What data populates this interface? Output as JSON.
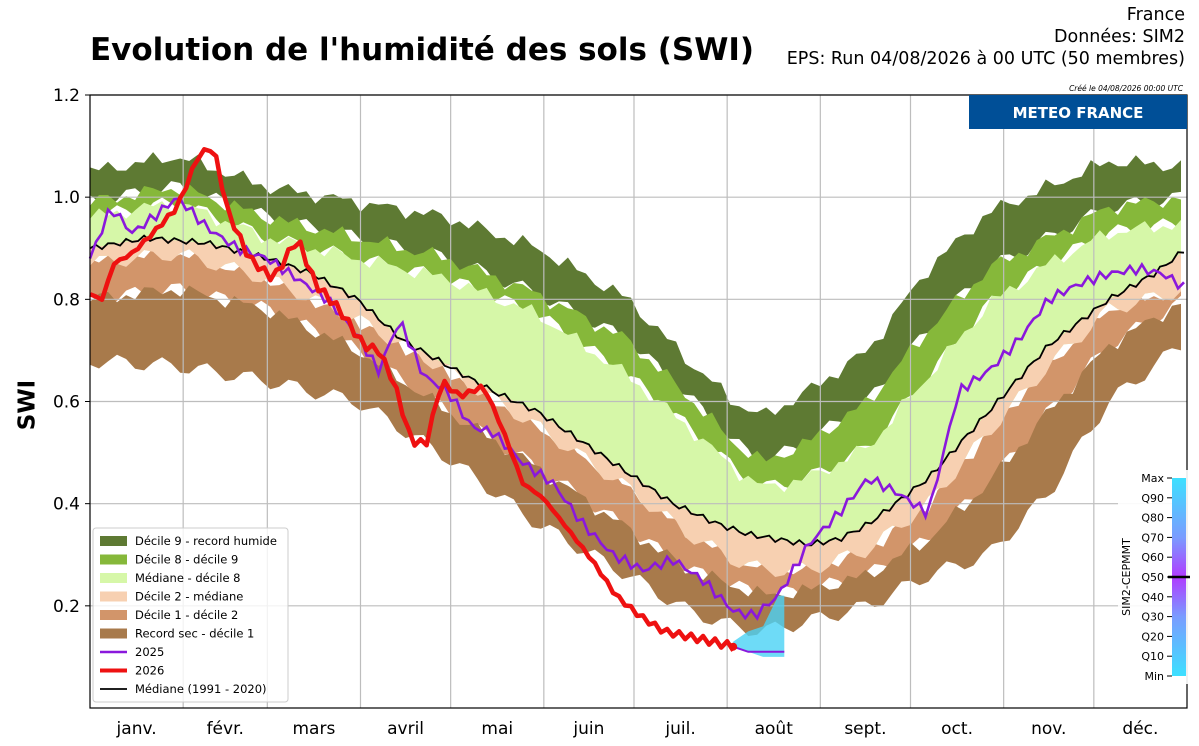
{
  "header": {
    "title": "Evolution de l'humidité des sols (SWI)",
    "meta_line1": "France",
    "meta_line2": "Données: SIM2",
    "meta_line3": "EPS: Run 04/08/2026 à 00 UTC (50 membres)",
    "created": "Créé le 04/08/2026 00:00 UTC",
    "logo": "METEO FRANCE"
  },
  "colors": {
    "d9_record": "#5e7a33",
    "d8_d9": "#86b83a",
    "med_d8": "#d6f7a8",
    "d2_med": "#f7d0b1",
    "d1_d2": "#d2956a",
    "rec_d1": "#a87a4b",
    "line_2025": "#8a18dc",
    "line_2026": "#ee1111",
    "median": "#000000",
    "logo_bg": "#004f97",
    "forecast": "#4ad2f5"
  },
  "chart_data": {
    "type": "area",
    "ylabel": "SWI",
    "ylim": [
      0.0,
      1.2
    ],
    "xlim": [
      1,
      366
    ],
    "grid": true,
    "legend_position": "lower-left",
    "yticks": [
      0.2,
      0.4,
      0.6,
      0.8,
      1.0,
      1.2
    ],
    "ytick_labels": [
      "0.2",
      "0.4",
      "0.6",
      "0.8",
      "1.0",
      "1.2"
    ],
    "months": [
      "janv.",
      "févr.",
      "mars",
      "avril",
      "mai",
      "juin",
      "juil.",
      "août",
      "sept.",
      "oct.",
      "nov.",
      "déc."
    ],
    "legend": [
      "Décile 9 - record humide",
      "Décile 8 - décile 9",
      "Médiane - décile 8",
      "Décile 2 - médiane",
      "Décile 1 - décile 2",
      "Record sec - décile 1",
      "2025",
      "2026",
      "Médiane (1991 - 2020)"
    ],
    "bands": {
      "x": [
        1,
        30,
        60,
        90,
        120,
        150,
        180,
        200,
        215,
        225,
        240,
        260,
        280,
        300,
        320,
        340,
        366
      ],
      "record_wet": [
        1.05,
        1.08,
        1.02,
        0.99,
        0.96,
        0.9,
        0.8,
        0.68,
        0.6,
        0.57,
        0.62,
        0.7,
        0.86,
        0.97,
        1.02,
        1.07,
        1.06
      ],
      "d9": [
        0.99,
        1.02,
        0.96,
        0.92,
        0.88,
        0.81,
        0.72,
        0.61,
        0.52,
        0.48,
        0.52,
        0.6,
        0.74,
        0.86,
        0.92,
        0.98,
        1.0
      ],
      "d8": [
        0.96,
        0.99,
        0.92,
        0.88,
        0.84,
        0.77,
        0.65,
        0.55,
        0.47,
        0.43,
        0.45,
        0.51,
        0.65,
        0.79,
        0.87,
        0.93,
        0.95
      ],
      "d2": [
        0.87,
        0.89,
        0.84,
        0.76,
        0.66,
        0.55,
        0.43,
        0.34,
        0.29,
        0.27,
        0.27,
        0.31,
        0.4,
        0.54,
        0.67,
        0.78,
        0.82
      ],
      "d1": [
        0.8,
        0.82,
        0.78,
        0.7,
        0.58,
        0.47,
        0.35,
        0.27,
        0.24,
        0.22,
        0.23,
        0.26,
        0.33,
        0.44,
        0.58,
        0.71,
        0.8
      ],
      "record_dry": [
        0.68,
        0.67,
        0.64,
        0.6,
        0.49,
        0.36,
        0.26,
        0.19,
        0.16,
        0.15,
        0.17,
        0.2,
        0.26,
        0.3,
        0.42,
        0.6,
        0.72
      ]
    },
    "series": [
      {
        "name": "Médiane (1991 - 2020)",
        "x": [
          1,
          20,
          40,
          60,
          75,
          90,
          105,
          120,
          135,
          150,
          165,
          180,
          195,
          210,
          220,
          230,
          240,
          250,
          260,
          280,
          300,
          320,
          340,
          355,
          366
        ],
        "values": [
          0.9,
          0.92,
          0.91,
          0.88,
          0.85,
          0.8,
          0.72,
          0.67,
          0.62,
          0.58,
          0.52,
          0.46,
          0.4,
          0.36,
          0.34,
          0.33,
          0.32,
          0.33,
          0.36,
          0.45,
          0.58,
          0.71,
          0.8,
          0.85,
          0.9
        ]
      },
      {
        "name": "2025",
        "x": [
          1,
          8,
          15,
          22,
          30,
          40,
          50,
          60,
          70,
          80,
          90,
          97,
          104,
          112,
          120,
          128,
          135,
          145,
          155,
          165,
          175,
          185,
          195,
          205,
          215,
          222,
          230,
          240,
          250,
          260,
          270,
          280,
          290,
          300,
          310,
          320,
          330,
          340,
          350,
          358,
          366
        ],
        "values": [
          0.88,
          0.98,
          0.93,
          0.96,
          1.0,
          0.94,
          0.9,
          0.88,
          0.84,
          0.8,
          0.73,
          0.66,
          0.76,
          0.65,
          0.62,
          0.55,
          0.54,
          0.48,
          0.44,
          0.36,
          0.3,
          0.27,
          0.29,
          0.25,
          0.19,
          0.18,
          0.22,
          0.32,
          0.38,
          0.45,
          0.42,
          0.38,
          0.62,
          0.66,
          0.72,
          0.8,
          0.83,
          0.85,
          0.86,
          0.85,
          0.82
        ]
      },
      {
        "name": "2026",
        "x": [
          1,
          5,
          9,
          15,
          22,
          30,
          37,
          42,
          47,
          54,
          62,
          70,
          76,
          84,
          92,
          97,
          102,
          108,
          113,
          118,
          124,
          132,
          138,
          145,
          152,
          160,
          168,
          176,
          184,
          192,
          200,
          208,
          215
        ],
        "values": [
          0.81,
          0.8,
          0.87,
          0.89,
          0.93,
          0.98,
          1.08,
          1.1,
          0.97,
          0.88,
          0.84,
          0.92,
          0.83,
          0.78,
          0.71,
          0.7,
          0.64,
          0.52,
          0.52,
          0.64,
          0.61,
          0.63,
          0.55,
          0.44,
          0.41,
          0.35,
          0.29,
          0.22,
          0.18,
          0.15,
          0.14,
          0.13,
          0.12
        ]
      }
    ],
    "forecast": {
      "x": [
        215,
        220,
        225,
        230,
        232
      ],
      "low": [
        0.12,
        0.11,
        0.1,
        0.1,
        0.1
      ],
      "high": [
        0.13,
        0.15,
        0.16,
        0.22,
        0.22
      ],
      "mean": [
        0.12,
        0.11,
        0.11,
        0.11,
        0.11
      ]
    },
    "colorbar": {
      "title": "SIM2-CEPMMT",
      "labels": [
        "Max",
        "Q90",
        "Q80",
        "Q70",
        "Q60",
        "Q50",
        "Q40",
        "Q30",
        "Q20",
        "Q10",
        "Min"
      ]
    }
  }
}
